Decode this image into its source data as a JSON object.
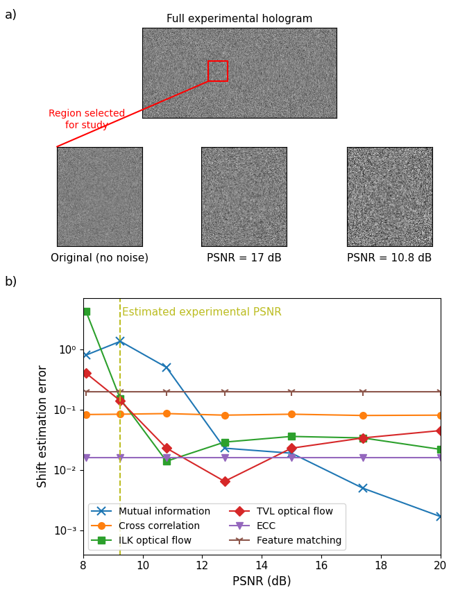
{
  "panel_a": {
    "label": "a)",
    "hologram_title": "Full experimental hologram",
    "region_note": "Region selected\nfor study",
    "crops": [
      "Original (no noise)",
      "PSNR = 17 dB",
      "PSNR = 10.8 dB"
    ]
  },
  "chart_data": {
    "type": "line",
    "panel_label": "b)",
    "x_label": "PSNR (dB)",
    "y_label": "Shift estimation error",
    "log": "y",
    "xlim": [
      8,
      20
    ],
    "xticks": [
      8,
      10,
      12,
      14,
      16,
      18,
      20
    ],
    "ylim": [
      0.0004,
      7
    ],
    "yticks": [
      {
        "value": 0.001,
        "label": "10⁻³"
      },
      {
        "value": 0.01,
        "label": "10⁻²"
      },
      {
        "value": 0.1,
        "label": "10⁻¹"
      },
      {
        "value": 1,
        "label": "10⁰"
      }
    ],
    "legend": "lower left",
    "reference_line": {
      "x": 9.25,
      "label": "Estimated experimental PSNR",
      "color": "#bcbd22",
      "line_style": "dashed"
    },
    "x": [
      8.1,
      9.25,
      10.8,
      12.75,
      15.0,
      17.4,
      20.0
    ],
    "series": [
      {
        "name": "Mutual information",
        "color": "#1f77b4",
        "marker": "x",
        "values": [
          0.8,
          1.35,
          0.5,
          0.023,
          0.019,
          0.005,
          0.0017
        ]
      },
      {
        "name": "Cross correlation",
        "color": "#ff7f0e",
        "marker": "circle",
        "values": [
          0.083,
          0.084,
          0.086,
          0.081,
          0.084,
          0.08,
          0.081
        ]
      },
      {
        "name": "ILK optical flow",
        "color": "#2ca02c",
        "marker": "square",
        "values": [
          4.2,
          0.15,
          0.014,
          0.029,
          0.036,
          0.034,
          0.022
        ]
      },
      {
        "name": "TVL optical flow",
        "color": "#d62728",
        "marker": "diamond",
        "values": [
          0.4,
          0.14,
          0.023,
          0.0065,
          0.023,
          0.034,
          0.045
        ]
      },
      {
        "name": "ECC",
        "color": "#9467bd",
        "marker": "triangle_down",
        "values": [
          0.016,
          0.016,
          0.016,
          0.016,
          0.016,
          0.016,
          0.016
        ]
      },
      {
        "name": "Feature matching",
        "color": "#8c564b",
        "marker": "tri_down",
        "values": [
          0.2,
          0.2,
          0.2,
          0.2,
          0.2,
          0.2,
          0.2
        ]
      }
    ]
  }
}
